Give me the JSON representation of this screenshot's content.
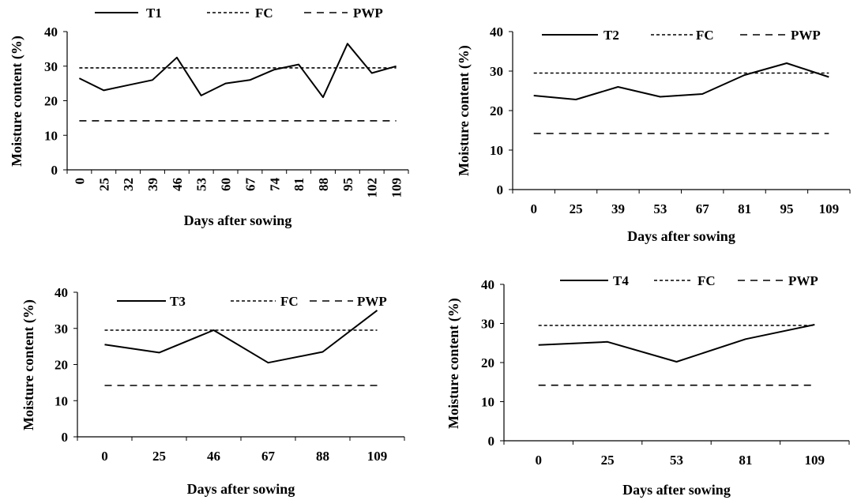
{
  "chart_data": [
    {
      "type": "line",
      "xlabel": "Days after sowing",
      "ylabel": "Moisture content (%)",
      "ylim": [
        0,
        40
      ],
      "yticks": [
        "0",
        "10",
        "20",
        "30",
        "40"
      ],
      "categories": [
        "0",
        "25",
        "32",
        "39",
        "46",
        "53",
        "60",
        "67",
        "74",
        "81",
        "88",
        "95",
        "102",
        "109"
      ],
      "x_labels_rotated": true,
      "legend_position": "top",
      "series": [
        {
          "name": "T1",
          "style": "solid",
          "values": [
            26.5,
            23,
            24.5,
            26,
            32.5,
            21.5,
            25,
            26,
            29,
            30.5,
            21,
            36.5,
            28,
            30
          ]
        },
        {
          "name": "FC",
          "style": "dotted",
          "values": [
            29.5,
            29.5,
            29.5,
            29.5,
            29.5,
            29.5,
            29.5,
            29.5,
            29.5,
            29.5,
            29.5,
            29.5,
            29.5,
            29.5
          ]
        },
        {
          "name": "PWP",
          "style": "dashed",
          "values": [
            14.2,
            14.2,
            14.2,
            14.2,
            14.2,
            14.2,
            14.2,
            14.2,
            14.2,
            14.2,
            14.2,
            14.2,
            14.2,
            14.2
          ]
        }
      ]
    },
    {
      "type": "line",
      "xlabel": "Days after sowing",
      "ylabel": "Moisture content (%)",
      "ylim": [
        0,
        40
      ],
      "yticks": [
        "0",
        "10",
        "20",
        "30",
        "40"
      ],
      "categories": [
        "0",
        "25",
        "39",
        "53",
        "67",
        "81",
        "95",
        "109"
      ],
      "x_labels_rotated": false,
      "legend_position": "top",
      "series": [
        {
          "name": "T2",
          "style": "solid",
          "values": [
            23.8,
            22.8,
            26,
            23.5,
            24.2,
            29,
            32,
            28.5
          ]
        },
        {
          "name": "FC",
          "style": "dotted",
          "values": [
            29.5,
            29.5,
            29.5,
            29.5,
            29.5,
            29.5,
            29.5,
            29.5
          ]
        },
        {
          "name": "PWP",
          "style": "dashed",
          "values": [
            14.2,
            14.2,
            14.2,
            14.2,
            14.2,
            14.2,
            14.2,
            14.2
          ]
        }
      ]
    },
    {
      "type": "line",
      "xlabel": "Days after sowing",
      "ylabel": "Moisture content (%)",
      "ylim": [
        0,
        40
      ],
      "yticks": [
        "0",
        "10",
        "20",
        "30",
        "40"
      ],
      "categories": [
        "0",
        "25",
        "46",
        "67",
        "88",
        "109"
      ],
      "x_labels_rotated": false,
      "legend_position": "top",
      "series": [
        {
          "name": "T3",
          "style": "solid",
          "values": [
            25.5,
            23.3,
            29.5,
            20.5,
            23.5,
            35
          ]
        },
        {
          "name": "FC",
          "style": "dotted",
          "values": [
            29.5,
            29.5,
            29.5,
            29.5,
            29.5,
            29.5
          ]
        },
        {
          "name": "PWP",
          "style": "dashed",
          "values": [
            14.2,
            14.2,
            14.2,
            14.2,
            14.2,
            14.2
          ]
        }
      ]
    },
    {
      "type": "line",
      "xlabel": "Days after sowing",
      "ylabel": "Moisture content (%)",
      "ylim": [
        0,
        40
      ],
      "yticks": [
        "0",
        "10",
        "20",
        "30",
        "40"
      ],
      "categories": [
        "0",
        "25",
        "53",
        "81",
        "109"
      ],
      "x_labels_rotated": false,
      "legend_position": "top",
      "series": [
        {
          "name": "T4",
          "style": "solid",
          "values": [
            24.5,
            25.3,
            20.2,
            26,
            29.7
          ]
        },
        {
          "name": "FC",
          "style": "dotted",
          "values": [
            29.5,
            29.5,
            29.5,
            29.5,
            29.5
          ]
        },
        {
          "name": "PWP",
          "style": "dashed",
          "values": [
            14.2,
            14.2,
            14.2,
            14.2,
            14.2
          ]
        }
      ]
    }
  ]
}
